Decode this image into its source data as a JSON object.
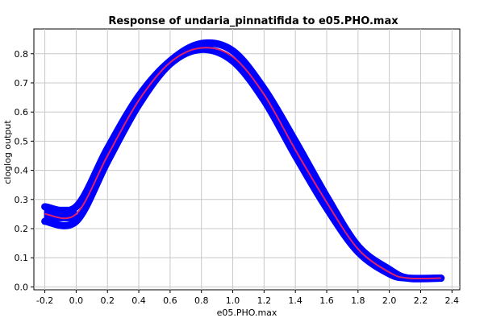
{
  "chart_data": {
    "type": "line",
    "title": "Response of undaria_pinnatifida to e05.PHO.max",
    "xlabel": "e05.PHO.max",
    "ylabel": "cloglog output",
    "xlim": [
      -0.27,
      2.45
    ],
    "ylim": [
      -0.01,
      0.885
    ],
    "x_ticks": [
      "-0.2",
      "0.0",
      "0.2",
      "0.4",
      "0.6",
      "0.8",
      "1.0",
      "1.2",
      "1.4",
      "1.6",
      "1.8",
      "2.0",
      "2.2",
      "2.4"
    ],
    "y_ticks": [
      "0.0",
      "0.1",
      "0.2",
      "0.3",
      "0.4",
      "0.5",
      "0.6",
      "0.7",
      "0.8"
    ],
    "grid": true,
    "series": [
      {
        "role": "mean",
        "color": "#e0206a",
        "x": [
          -0.2,
          0.0,
          0.2,
          0.4,
          0.6,
          0.8,
          1.0,
          1.2,
          1.4,
          1.6,
          1.8,
          2.0,
          2.12,
          2.33
        ],
        "y": [
          0.25,
          0.25,
          0.45,
          0.64,
          0.77,
          0.82,
          0.79,
          0.66,
          0.47,
          0.29,
          0.13,
          0.05,
          0.03,
          0.03
        ]
      },
      {
        "role": "band-upper",
        "color": "#0000ff",
        "x": [
          -0.2,
          0.0,
          0.2,
          0.4,
          0.6,
          0.8,
          1.0,
          1.2,
          1.4,
          1.6,
          1.8,
          2.0,
          2.12,
          2.33
        ],
        "y": [
          0.275,
          0.275,
          0.475,
          0.655,
          0.775,
          0.835,
          0.81,
          0.68,
          0.5,
          0.31,
          0.14,
          0.06,
          0.03,
          0.03
        ]
      },
      {
        "role": "band-lower",
        "color": "#0000ff",
        "x": [
          -0.2,
          0.0,
          0.2,
          0.4,
          0.6,
          0.8,
          1.0,
          1.2,
          1.4,
          1.6,
          1.8,
          2.0,
          2.12,
          2.33
        ],
        "y": [
          0.225,
          0.225,
          0.43,
          0.625,
          0.765,
          0.815,
          0.775,
          0.64,
          0.45,
          0.27,
          0.12,
          0.045,
          0.03,
          0.03
        ]
      }
    ]
  }
}
